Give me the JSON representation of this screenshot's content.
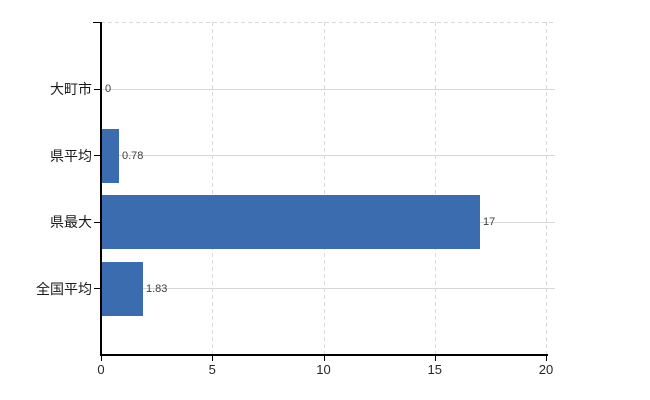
{
  "chart_data": {
    "type": "bar",
    "orientation": "horizontal",
    "title": "",
    "xlabel": "",
    "ylabel": "",
    "categories": [
      "大町市",
      "県平均",
      "県最大",
      "全国平均"
    ],
    "values": [
      0,
      0.78,
      17,
      1.83
    ],
    "value_labels": [
      "0",
      "0.78",
      "17",
      "1.83"
    ],
    "xlim": [
      0,
      20
    ],
    "x_ticks": [
      0,
      5,
      10,
      15,
      20
    ],
    "x_tick_labels": [
      "0",
      "5",
      "10",
      "15",
      "20"
    ],
    "legend": "none",
    "grid": {
      "vertical_style": "dashed",
      "horizontal_style": "solid",
      "top_border_style": "dashed",
      "color": "#D9D9D9"
    },
    "colors": {
      "bar": "#3C6CB0",
      "axis": "#000000",
      "tick_label": "#262626",
      "category_label": "#1A1A1A",
      "value_label": "#404040",
      "background": "#FFFFFF"
    }
  }
}
